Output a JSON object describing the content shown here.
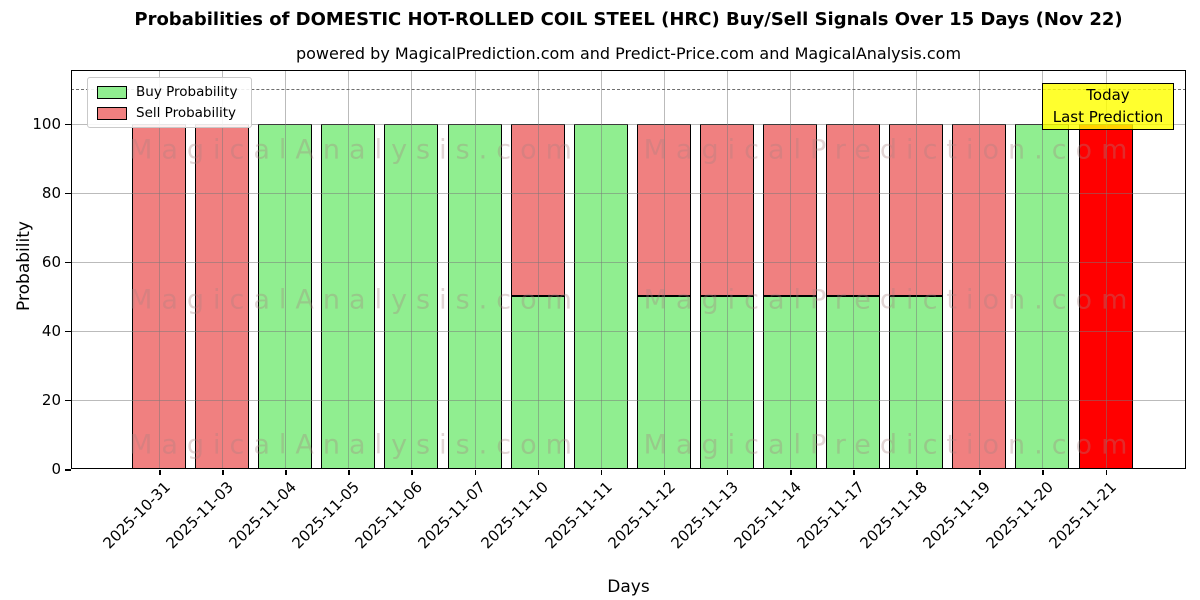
{
  "chart_data": {
    "type": "bar",
    "stacked": true,
    "title": "Probabilities of DOMESTIC HOT-ROLLED COIL STEEL (HRC) Buy/Sell Signals Over 15 Days (Nov 22)",
    "subtitle": "powered by MagicalPrediction.com and Predict-Price.com and MagicalAnalysis.com",
    "xlabel": "Days",
    "ylabel": "Probability",
    "ylim": [
      0,
      115
    ],
    "yticks": [
      0,
      20,
      40,
      60,
      80,
      100
    ],
    "grid": true,
    "dashed_line_y": 110,
    "categories": [
      "2025-10-31",
      "2025-11-03",
      "2025-11-04",
      "2025-11-05",
      "2025-11-06",
      "2025-11-07",
      "2025-11-10",
      "2025-11-11",
      "2025-11-12",
      "2025-11-13",
      "2025-11-14",
      "2025-11-17",
      "2025-11-18",
      "2025-11-19",
      "2025-11-20",
      "2025-11-21"
    ],
    "series": [
      {
        "name": "Buy Probability",
        "color": "#90ee90",
        "values": [
          0,
          0,
          100,
          100,
          100,
          100,
          50,
          100,
          50,
          50,
          50,
          50,
          50,
          0,
          100,
          0
        ]
      },
      {
        "name": "Sell Probability",
        "color": "#f08080",
        "values": [
          100,
          100,
          0,
          0,
          0,
          0,
          50,
          0,
          50,
          50,
          50,
          50,
          50,
          100,
          0,
          100
        ]
      }
    ],
    "legend": {
      "position": "upper-left",
      "entries": [
        {
          "label": "Buy Probability",
          "color": "#90ee90"
        },
        {
          "label": "Sell Probability",
          "color": "#f08080"
        }
      ]
    },
    "highlight": {
      "index": 15,
      "date": "2025-11-21",
      "color": "#ff0000",
      "box_color": "#ffff00",
      "label_lines": [
        "Today",
        "Last Prediction"
      ]
    },
    "watermarks": [
      "MagicalAnalysis.com",
      "MagicalPrediction.com"
    ]
  }
}
